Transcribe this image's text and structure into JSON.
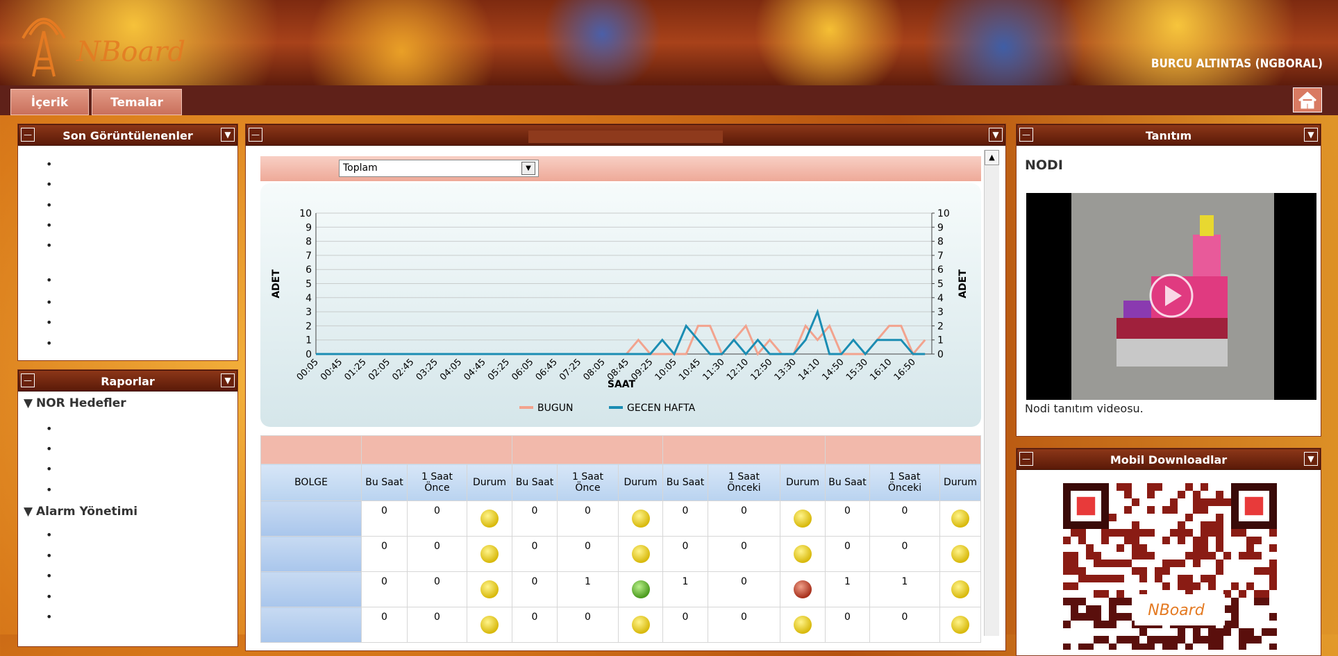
{
  "header": {
    "logo": "NBoard",
    "user": "BURCU ALTINTAS (NGBORAL)"
  },
  "nav": [
    "İçerik",
    "Temalar"
  ],
  "left_panels": [
    {
      "title": "Son Görüntülenenler"
    },
    {
      "title": "Raporlar",
      "groups": [
        "NOR Hedefler",
        "Alarm Yönetimi"
      ]
    }
  ],
  "center": {
    "filter": "Toplam"
  },
  "chart_data": {
    "type": "line",
    "x_label": "SAAT",
    "y_label": "ADET",
    "y2_label": "ADET",
    "categories": [
      "00:05",
      null,
      "00:45",
      null,
      "01:25",
      null,
      "02:05",
      null,
      "02:45",
      null,
      "03:25",
      null,
      "04:05",
      null,
      "04:45",
      null,
      "05:25",
      null,
      "06:05",
      null,
      "06:45",
      null,
      "07:25",
      null,
      "08:05",
      null,
      "08:45",
      null,
      "09:25",
      null,
      "10:05",
      null,
      "10:45",
      null,
      "11:30",
      null,
      "12:10",
      null,
      "12:50",
      null,
      "13:30",
      null,
      "14:10",
      null,
      "14:50",
      null,
      "15:30",
      null,
      "16:10",
      null,
      "16:50",
      null
    ],
    "series": [
      {
        "name": "BUGUN",
        "color": "#f2a38e",
        "values": [
          0,
          0,
          0,
          0,
          0,
          0,
          0,
          0,
          0,
          0,
          0,
          0,
          0,
          0,
          0,
          0,
          0,
          0,
          0,
          0,
          0,
          0,
          0,
          0,
          0,
          0,
          0,
          1,
          0,
          0,
          0,
          0,
          2,
          2,
          0,
          1,
          2,
          0,
          1,
          0,
          0,
          2,
          1,
          2,
          0,
          0,
          0,
          1,
          2,
          2,
          0,
          1
        ]
      },
      {
        "name": "GECEN HAFTA",
        "color": "#1b8db3",
        "values": [
          0,
          0,
          0,
          0,
          0,
          0,
          0,
          0,
          0,
          0,
          0,
          0,
          0,
          0,
          0,
          0,
          0,
          0,
          0,
          0,
          0,
          0,
          0,
          0,
          0,
          0,
          0,
          0,
          0,
          1,
          0,
          2,
          1,
          0,
          0,
          1,
          0,
          1,
          0,
          0,
          0,
          1,
          3,
          0,
          0,
          1,
          0,
          1,
          1,
          1,
          0,
          0
        ]
      }
    ],
    "ylim": [
      0,
      10
    ],
    "yticks": [
      0,
      1,
      2,
      3,
      4,
      5,
      6,
      7,
      8,
      9,
      10
    ],
    "y2lim": [
      0,
      10
    ],
    "y2ticks": [
      0,
      1,
      2,
      3,
      4,
      5,
      6,
      7,
      8,
      9,
      10
    ],
    "grid": true,
    "legend": "bottom"
  },
  "table": {
    "header": [
      "BOLGE",
      "Bu Saat",
      "1 Saat Önce",
      "Durum",
      "Bu Saat",
      "1 Saat Önce",
      "Durum",
      "Bu Saat",
      "1 Saat Önceki",
      "Durum",
      "Bu Saat",
      "1 Saat Önceki",
      "Durum"
    ],
    "rows": [
      [
        0,
        0,
        0,
        0,
        0,
        0,
        0,
        0
      ],
      [
        0,
        0,
        0,
        0,
        0,
        0,
        0,
        0
      ],
      [
        0,
        0,
        0,
        1,
        1,
        0,
        1,
        1
      ],
      [
        0,
        0,
        0,
        0,
        0,
        0,
        0,
        0
      ]
    ]
  },
  "right_panels": [
    {
      "title": "Tanıtım",
      "heading": "NODI",
      "caption": "Nodi tanıtım videosu."
    },
    {
      "title": "Mobil Downloadlar"
    }
  ]
}
